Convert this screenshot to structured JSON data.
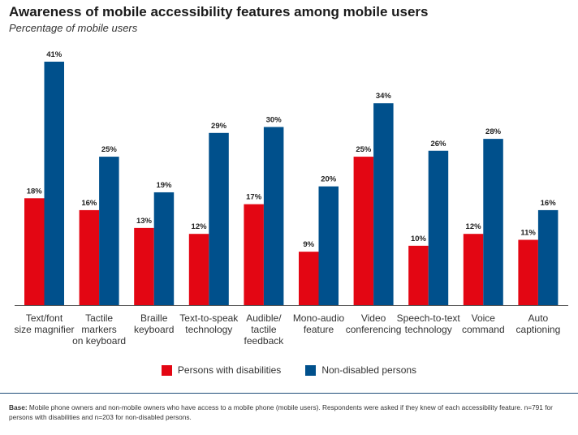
{
  "title": "Awareness of mobile accessibility features among mobile users",
  "subtitle": "Percentage of mobile users",
  "chart_data": {
    "type": "bar",
    "categories": [
      [
        "Text/font",
        "size magnifier"
      ],
      [
        "Tactile",
        "markers",
        "on keyboard"
      ],
      [
        "Braille",
        "keyboard"
      ],
      [
        "Text-to-speak",
        "technology"
      ],
      [
        "Audible/",
        "tactile",
        "feedback"
      ],
      [
        "Mono-audio",
        "feature"
      ],
      [
        "Video",
        "conferencing"
      ],
      [
        "Speech-to-text",
        "technology"
      ],
      [
        "Voice",
        "command"
      ],
      [
        "Auto",
        "captioning"
      ]
    ],
    "series": [
      {
        "name": "Persons with disabilities",
        "color": "#e30613",
        "values": [
          18,
          16,
          13,
          12,
          17,
          9,
          25,
          10,
          12,
          11
        ]
      },
      {
        "name": "Non-disabled persons",
        "color": "#00508c",
        "values": [
          41,
          25,
          19,
          29,
          30,
          20,
          34,
          26,
          28,
          16
        ]
      }
    ],
    "value_suffix": "%",
    "ylim": [
      0,
      41
    ],
    "grid": false,
    "legend": "bottom"
  },
  "footnote": {
    "label": "Base:",
    "text": " Mobile phone owners and non-mobile owners who have access to a mobile phone (mobile users). Respondents were asked if they knew of each accessibility feature. n=791 for persons with disabilities and n=203 for non-disabled persons."
  }
}
